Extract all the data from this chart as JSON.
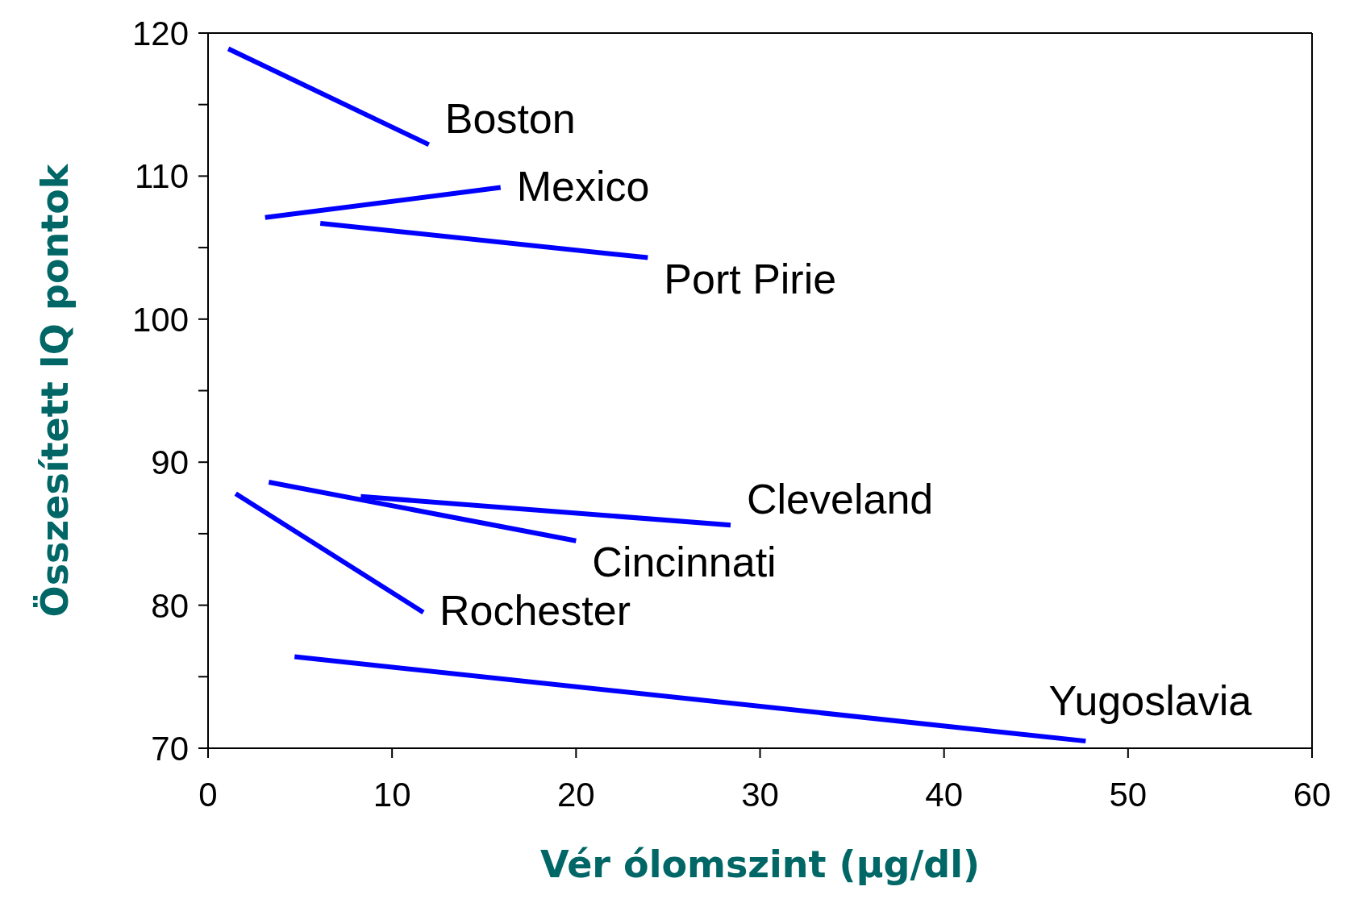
{
  "chart_data": {
    "type": "line",
    "xlabel": "Vér ólomszint (µg/dl)",
    "ylabel": "Összesített IQ pontok",
    "xlim": [
      0,
      60
    ],
    "xticks": [
      0,
      10,
      20,
      30,
      40,
      50,
      60
    ],
    "ylim": [
      70,
      120
    ],
    "yticks": [
      70,
      {
        "value": 75,
        "label": null
      },
      80,
      {
        "value": 85,
        "label": null
      },
      90,
      {
        "value": 95,
        "label": null
      },
      100,
      {
        "value": 105,
        "label": null
      },
      110,
      {
        "value": 115,
        "label": null
      },
      120
    ],
    "marker": "none",
    "line_style": "solid",
    "series": [
      {
        "name": "Boston",
        "color": "#0000ff",
        "x": [
          1.1,
          12.0
        ],
        "values": [
          118.9,
          112.2
        ]
      },
      {
        "name": "Mexico",
        "color": "#0000ff",
        "x": [
          3.1,
          15.9
        ],
        "values": [
          107.1,
          109.2
        ]
      },
      {
        "name": "Port Pirie",
        "color": "#0000ff",
        "x": [
          6.1,
          23.9
        ],
        "values": [
          106.7,
          104.3
        ]
      },
      {
        "name": "Cleveland",
        "color": "#0000ff",
        "x": [
          8.3,
          28.4
        ],
        "values": [
          87.6,
          85.6
        ]
      },
      {
        "name": "Cincinnati",
        "color": "#0000ff",
        "x": [
          3.3,
          20.0
        ],
        "values": [
          88.6,
          84.5
        ]
      },
      {
        "name": "Rochester",
        "color": "#0000ff",
        "x": [
          1.5,
          11.7
        ],
        "values": [
          87.8,
          79.5
        ]
      },
      {
        "name": "Yugoslavia",
        "color": "#0000ff",
        "x": [
          4.7,
          47.7
        ],
        "values": [
          76.4,
          70.5
        ]
      }
    ]
  }
}
